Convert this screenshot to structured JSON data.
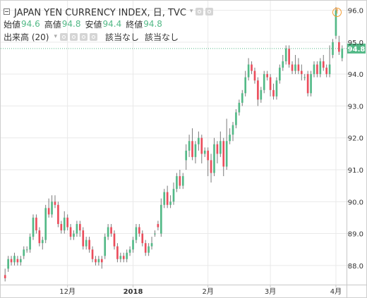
{
  "header": {
    "title": "JAPAN YEN CURRENCY INDEX, 日, TVC",
    "ohlc": [
      {
        "label": "始値",
        "value": "94.6"
      },
      {
        "label": "高値",
        "value": "94.8"
      },
      {
        "label": "安値",
        "value": "94.4"
      },
      {
        "label": "終値",
        "value": "94.8"
      }
    ],
    "indicator": {
      "name": "出来高 (20)",
      "values": [
        "該当なし",
        "該当なし"
      ]
    }
  },
  "colors": {
    "up": "#53b987",
    "down": "#eb4d5c",
    "wick": "#7a7a7a",
    "grid": "#e9e9e9",
    "axis_text": "#333333",
    "price_line": "#53b987"
  },
  "chart_data": {
    "type": "candlestick",
    "title": "JAPAN YEN CURRENCY INDEX, 日, TVC",
    "ylim": [
      87.4,
      96.3
    ],
    "y_ticks": [
      88.0,
      89.0,
      90.0,
      91.0,
      92.0,
      93.0,
      94.0,
      95.0,
      96.0
    ],
    "x_ticks": [
      {
        "label": "12月",
        "index": 20
      },
      {
        "label": "2018",
        "index": 41
      },
      {
        "label": "2月",
        "index": 65
      },
      {
        "label": "3月",
        "index": 85
      },
      {
        "label": "4月",
        "index": 106
      }
    ],
    "last_price": 94.8,
    "grid": true,
    "candles": [
      [
        87.7,
        87.6,
        87.9,
        87.5
      ],
      [
        87.9,
        88.2,
        88.3,
        87.8
      ],
      [
        88.2,
        88.1,
        88.3,
        88.0
      ],
      [
        88.1,
        88.3,
        88.4,
        88.0
      ],
      [
        88.2,
        88.1,
        88.3,
        88.0
      ],
      [
        88.1,
        88.2,
        88.3,
        88.0
      ],
      [
        88.3,
        88.5,
        88.6,
        88.2
      ],
      [
        88.5,
        88.5,
        88.6,
        88.4
      ],
      [
        88.5,
        88.9,
        89.0,
        88.4
      ],
      [
        88.9,
        89.5,
        89.6,
        88.8
      ],
      [
        89.5,
        89.1,
        89.6,
        89.0
      ],
      [
        89.1,
        88.7,
        89.2,
        88.6
      ],
      [
        88.7,
        88.8,
        88.9,
        88.5
      ],
      [
        88.8,
        89.8,
        89.9,
        88.7
      ],
      [
        89.8,
        89.6,
        90.1,
        89.5
      ],
      [
        89.6,
        90.0,
        90.2,
        89.5
      ],
      [
        90.0,
        89.9,
        90.2,
        89.8
      ],
      [
        89.9,
        89.3,
        90.0,
        89.2
      ],
      [
        89.3,
        89.1,
        89.4,
        89.0
      ],
      [
        89.1,
        89.5,
        89.7,
        89.0
      ],
      [
        89.5,
        89.2,
        89.6,
        89.1
      ],
      [
        89.2,
        88.9,
        89.3,
        88.8
      ],
      [
        88.9,
        89.0,
        89.1,
        88.8
      ],
      [
        89.0,
        89.3,
        89.4,
        88.9
      ],
      [
        89.3,
        89.1,
        89.4,
        88.9
      ],
      [
        89.1,
        88.6,
        89.2,
        88.5
      ],
      [
        88.6,
        88.8,
        88.9,
        88.5
      ],
      [
        88.8,
        88.5,
        88.9,
        88.4
      ],
      [
        88.5,
        88.2,
        88.6,
        88.1
      ],
      [
        88.2,
        88.1,
        88.3,
        88.0
      ],
      [
        88.1,
        88.2,
        88.3,
        88.0
      ],
      [
        88.2,
        88.1,
        88.3,
        87.9
      ],
      [
        88.3,
        88.9,
        89.0,
        88.2
      ],
      [
        88.9,
        89.2,
        89.3,
        88.8
      ],
      [
        89.2,
        89.0,
        89.3,
        88.9
      ],
      [
        89.0,
        88.6,
        89.1,
        88.5
      ],
      [
        88.6,
        88.2,
        88.7,
        88.1
      ],
      [
        88.2,
        88.3,
        88.4,
        88.1
      ],
      [
        88.3,
        88.2,
        88.4,
        88.1
      ],
      [
        88.2,
        88.4,
        88.5,
        88.1
      ],
      [
        88.4,
        88.5,
        88.6,
        88.3
      ],
      [
        88.5,
        88.8,
        88.9,
        88.4
      ],
      [
        88.8,
        89.2,
        89.3,
        88.7
      ],
      [
        89.2,
        89.0,
        89.3,
        88.9
      ],
      [
        89.0,
        88.7,
        89.1,
        88.6
      ],
      [
        88.7,
        88.4,
        88.8,
        88.3
      ],
      [
        88.4,
        88.6,
        88.7,
        88.3
      ],
      [
        88.6,
        88.7,
        88.9,
        88.5
      ],
      [
        89.0,
        89.0,
        89.1,
        88.9
      ],
      [
        89.3,
        89.2,
        89.4,
        89.1
      ],
      [
        89.0,
        89.9,
        90.1,
        88.9
      ],
      [
        89.9,
        90.3,
        90.4,
        89.8
      ],
      [
        90.3,
        89.9,
        90.5,
        89.8
      ],
      [
        89.9,
        90.0,
        90.2,
        89.8
      ],
      [
        90.0,
        90.4,
        90.6,
        89.9
      ],
      [
        90.4,
        90.8,
        90.9,
        90.3
      ],
      [
        90.8,
        90.5,
        91.0,
        90.4
      ],
      [
        90.5,
        90.8,
        90.9,
        90.4
      ],
      [
        91.3,
        91.6,
        91.8,
        91.0
      ],
      [
        91.6,
        91.9,
        92.1,
        91.4
      ],
      [
        91.9,
        91.4,
        92.3,
        91.3
      ],
      [
        91.4,
        91.8,
        91.9,
        91.2
      ],
      [
        91.8,
        92.0,
        92.2,
        91.6
      ],
      [
        92.0,
        91.5,
        92.1,
        91.2
      ],
      [
        91.5,
        91.6,
        91.7,
        91.4
      ],
      [
        91.6,
        91.3,
        91.7,
        90.8
      ],
      [
        91.3,
        90.9,
        91.5,
        90.6
      ],
      [
        90.9,
        91.8,
        92.0,
        90.8
      ],
      [
        91.8,
        91.5,
        91.9,
        91.2
      ],
      [
        91.5,
        91.9,
        92.2,
        91.4
      ],
      [
        91.9,
        91.1,
        92.0,
        90.8
      ],
      [
        91.1,
        91.9,
        92.6,
        91.0
      ],
      [
        91.9,
        92.1,
        92.3,
        91.8
      ],
      [
        92.1,
        92.4,
        92.5,
        91.9
      ],
      [
        92.4,
        92.8,
        92.9,
        92.3
      ],
      [
        92.8,
        93.1,
        93.2,
        92.7
      ],
      [
        93.1,
        93.4,
        93.5,
        93.0
      ],
      [
        93.4,
        93.9,
        94.1,
        93.3
      ],
      [
        93.9,
        94.3,
        94.5,
        93.8
      ],
      [
        94.3,
        94.1,
        94.4,
        94.0
      ],
      [
        94.1,
        93.8,
        94.2,
        93.7
      ],
      [
        93.8,
        93.2,
        93.9,
        93.0
      ],
      [
        93.2,
        93.5,
        93.6,
        93.1
      ],
      [
        93.5,
        94.0,
        94.1,
        93.4
      ],
      [
        94.0,
        93.9,
        94.1,
        93.8
      ],
      [
        93.9,
        93.5,
        94.0,
        93.3
      ],
      [
        93.5,
        93.3,
        93.7,
        93.2
      ],
      [
        93.3,
        93.8,
        93.9,
        93.2
      ],
      [
        93.8,
        94.2,
        94.3,
        93.7
      ],
      [
        94.2,
        94.4,
        94.6,
        94.1
      ],
      [
        94.4,
        94.8,
        94.9,
        94.3
      ],
      [
        94.8,
        94.3,
        94.9,
        94.2
      ],
      [
        94.3,
        94.1,
        94.4,
        94.0
      ],
      [
        94.1,
        94.3,
        94.6,
        94.0
      ],
      [
        94.3,
        94.1,
        94.5,
        94.0
      ],
      [
        94.1,
        94.0,
        94.3,
        93.8
      ],
      [
        93.9,
        93.9,
        94.0,
        93.8
      ],
      [
        94.0,
        93.4,
        94.1,
        93.3
      ],
      [
        93.4,
        94.0,
        94.1,
        93.3
      ],
      [
        94.0,
        94.3,
        94.4,
        93.9
      ],
      [
        94.3,
        94.0,
        94.4,
        93.9
      ],
      [
        94.0,
        94.4,
        94.5,
        93.9
      ],
      [
        94.4,
        94.2,
        94.6,
        94.1
      ],
      [
        94.2,
        94.0,
        94.3,
        93.9
      ],
      [
        94.0,
        94.3,
        94.9,
        93.9
      ],
      [
        94.6,
        95.0,
        95.1,
        94.5
      ],
      [
        95.2,
        96.0,
        96.1,
        95.1
      ],
      [
        95.0,
        94.7,
        95.2,
        94.6
      ],
      [
        94.5,
        94.8,
        94.9,
        94.4
      ]
    ]
  }
}
